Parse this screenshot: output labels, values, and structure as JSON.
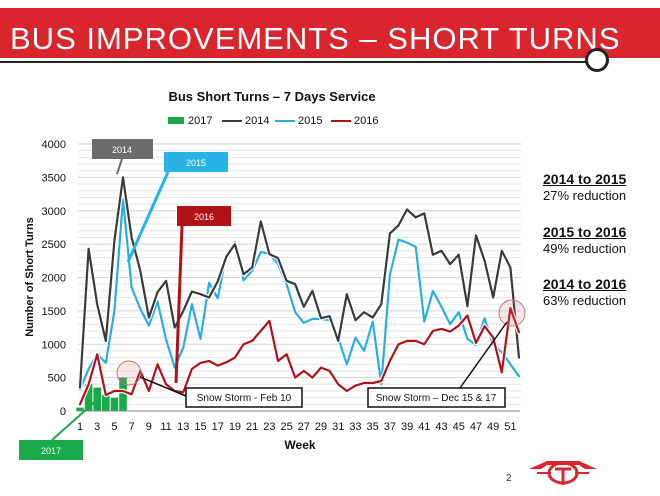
{
  "slide_title": "BUS IMPROVEMENTS – SHORT TURNS",
  "page_number": "2",
  "summary": [
    {
      "heading": "2014 to 2015",
      "value": "27% reduction"
    },
    {
      "heading": "2015 to 2016",
      "value": "49% reduction"
    },
    {
      "heading": "2014 to 2016",
      "value": "63% reduction"
    }
  ],
  "callouts": [
    {
      "text": "2014"
    },
    {
      "text": "2015"
    },
    {
      "text": "2016"
    },
    {
      "text": "2017"
    }
  ],
  "annotations": [
    {
      "text": "Snow Storm - Feb 10"
    },
    {
      "text": "Snow Storm – Dec 15 & 17"
    }
  ],
  "colors": {
    "title_bar": "#d9262e",
    "s2017": "#19a84a",
    "s2014": "#3a3a3a",
    "s2015": "#27aee3",
    "s2016": "#b11218",
    "callout2014": "#6b6b6b",
    "callout2015": "#29b2e6",
    "callout2016": "#b11218",
    "callout2017": "#19a84a"
  },
  "chart_data": {
    "type": "line",
    "title": "Bus Short Turns – 7 Days Service",
    "xlabel": "Week",
    "ylabel": "Number of Short Turns",
    "ylim": [
      0,
      4000
    ],
    "xlim": [
      1,
      52
    ],
    "yticks": [
      0,
      500,
      1000,
      1500,
      2000,
      2500,
      3000,
      3500,
      4000
    ],
    "xticks": [
      1,
      3,
      5,
      7,
      9,
      11,
      13,
      15,
      17,
      19,
      21,
      23,
      25,
      27,
      29,
      31,
      33,
      35,
      37,
      39,
      41,
      43,
      45,
      47,
      49,
      51
    ],
    "legend": [
      "2017",
      "2014",
      "2015",
      "2016"
    ],
    "series": [
      {
        "name": "2014",
        "type": "line",
        "x": [
          1,
          2,
          3,
          4,
          5,
          6,
          7,
          8,
          9,
          10,
          11,
          12,
          13,
          14,
          15,
          16,
          17,
          18,
          19,
          20,
          21,
          22,
          23,
          24,
          25,
          26,
          27,
          28,
          29,
          30,
          31,
          32,
          33,
          34,
          35,
          36,
          37,
          38,
          39,
          40,
          41,
          42,
          43,
          44,
          45,
          46,
          47,
          48,
          49,
          50,
          51,
          52
        ],
        "values": [
          350,
          2430,
          1600,
          1050,
          2550,
          3500,
          2600,
          2100,
          1400,
          1780,
          1950,
          1250,
          1500,
          1790,
          1750,
          1700,
          1940,
          2310,
          2500,
          2050,
          2150,
          2840,
          2350,
          2290,
          1950,
          1900,
          1560,
          1800,
          1390,
          1420,
          1050,
          1750,
          1360,
          1480,
          1400,
          1600,
          2660,
          2780,
          3020,
          2900,
          2960,
          2340,
          2400,
          2200,
          2340,
          1570,
          2630,
          2250,
          1700,
          2400,
          2150,
          800
        ]
      },
      {
        "name": "2015",
        "type": "line",
        "x": [
          1,
          2,
          3,
          4,
          5,
          6,
          7,
          8,
          9,
          10,
          11,
          12,
          13,
          14,
          15,
          16,
          17,
          18,
          19,
          20,
          21,
          22,
          23,
          24,
          25,
          26,
          27,
          28,
          29,
          30,
          31,
          32,
          33,
          34,
          35,
          36,
          37,
          38,
          39,
          40,
          41,
          42,
          43,
          44,
          45,
          46,
          47,
          48,
          49,
          50,
          51,
          52
        ],
        "values": [
          320,
          630,
          850,
          720,
          1500,
          3170,
          1850,
          1530,
          1280,
          1640,
          1070,
          650,
          950,
          1600,
          1080,
          1920,
          1690,
          2340,
          2530,
          1960,
          2100,
          2380,
          2360,
          2200,
          1900,
          1480,
          1320,
          1380,
          1380,
          1360,
          1100,
          700,
          1100,
          900,
          1340,
          400,
          2040,
          2570,
          2520,
          2460,
          1340,
          1800,
          1560,
          1300,
          1480,
          1080,
          990,
          1390,
          990,
          880,
          700,
          520
        ]
      },
      {
        "name": "2016",
        "type": "line",
        "x": [
          1,
          2,
          3,
          4,
          5,
          6,
          7,
          8,
          9,
          10,
          11,
          12,
          13,
          14,
          15,
          16,
          17,
          18,
          19,
          20,
          21,
          22,
          23,
          24,
          25,
          26,
          27,
          28,
          29,
          30,
          31,
          32,
          33,
          34,
          35,
          36,
          37,
          38,
          39,
          40,
          41,
          42,
          43,
          44,
          45,
          46,
          47,
          48,
          49,
          50,
          51,
          52
        ],
        "values": [
          100,
          400,
          850,
          240,
          300,
          300,
          250,
          600,
          300,
          700,
          400,
          300,
          280,
          630,
          720,
          750,
          680,
          730,
          800,
          1000,
          1050,
          1200,
          1350,
          750,
          850,
          500,
          600,
          500,
          650,
          600,
          400,
          300,
          380,
          420,
          420,
          450,
          750,
          1000,
          1050,
          1050,
          1000,
          1200,
          1230,
          1190,
          1280,
          1430,
          1020,
          1270,
          1100,
          580,
          1540,
          1180
        ]
      },
      {
        "name": "2017",
        "type": "bar",
        "x": [
          1,
          2,
          3,
          4,
          5,
          6
        ],
        "values": [
          50,
          400,
          350,
          240,
          200,
          500
        ]
      }
    ]
  }
}
